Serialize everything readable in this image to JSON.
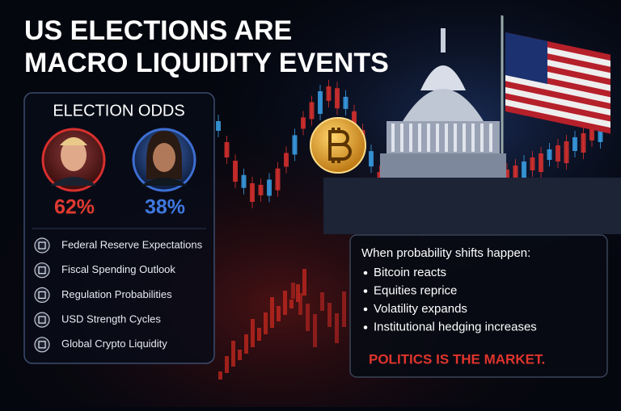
{
  "header": {
    "title_lines": [
      "US ELECTIONS ARE",
      "MACRO LIQUIDITY EVENTS"
    ]
  },
  "odds_panel": {
    "title": "ELECTION ODDS",
    "candidates": [
      {
        "odds": "62%"
      },
      {
        "odds": "38%"
      }
    ],
    "factors": [
      "Federal Reserve Expectations",
      "Fiscal Spending Outlook",
      "Regulation Probabilities",
      "USD Strength Cycles",
      "Global Crypto Liquidity"
    ]
  },
  "shift_box": {
    "heading": "When probability shifts happen:",
    "bullets": [
      "Bitcoin reacts",
      "Equities reprice",
      "Volatility expands",
      "Institutional hedging increases"
    ],
    "footer": "POLITICS IS THE MARKET."
  }
}
